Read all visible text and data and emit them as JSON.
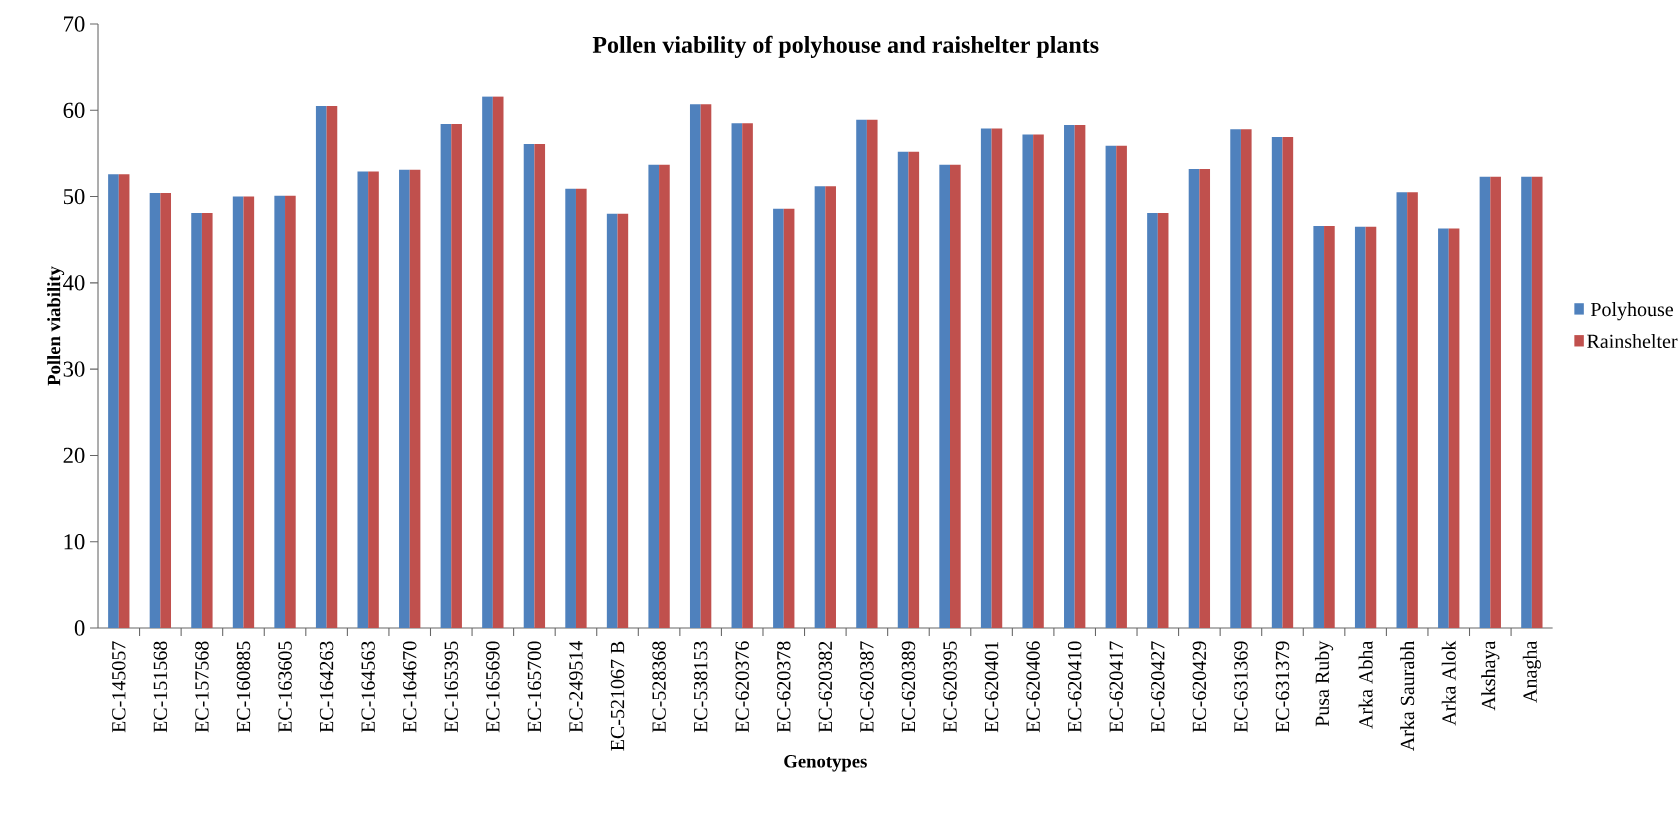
{
  "chart_data": {
    "type": "bar",
    "title": "Pollen viability of polyhouse and raishelter plants",
    "xlabel": "Genotypes",
    "ylabel": "Pollen viability",
    "categories": [
      "EC-145057",
      "EC-151568",
      "EC-157568",
      "EC-160885",
      "EC-163605",
      "EC-164263",
      "EC-164563",
      "EC-164670",
      "EC-165395",
      "EC-165690",
      "EC-165700",
      "EC-249514",
      "EC-521067 B",
      "EC-528368",
      "EC-538153",
      "EC-620376",
      "EC-620378",
      "EC-620382",
      "EC-620387",
      "EC-620389",
      "EC-620395",
      "EC-620401",
      "EC-620406",
      "EC-620410",
      "EC-620417",
      "EC-620427",
      "EC-620429",
      "EC-631369",
      "EC-631379",
      "Pusa Ruby",
      "Arka Abha",
      "Arka Saurabh",
      "Arka Alok",
      "Akshaya",
      "Anagha"
    ],
    "series": [
      {
        "name": "Polyhouse",
        "color": "#4f81bd",
        "values": [
          52.6,
          50.4,
          48.1,
          50.0,
          50.1,
          60.5,
          52.9,
          53.1,
          58.4,
          61.6,
          56.1,
          50.9,
          48.0,
          53.7,
          60.7,
          58.5,
          48.6,
          51.2,
          58.9,
          55.2,
          53.7,
          57.9,
          57.2,
          58.3,
          55.9,
          48.1,
          53.2,
          57.8,
          56.9,
          46.6,
          46.5,
          50.5,
          46.3,
          52.3,
          52.3
        ]
      },
      {
        "name": "Rainshelter",
        "color": "#c0504d",
        "values": [
          52.6,
          50.4,
          48.1,
          50.0,
          50.1,
          60.5,
          52.9,
          53.1,
          58.4,
          61.6,
          56.1,
          50.9,
          48.0,
          53.7,
          60.7,
          58.5,
          48.6,
          51.2,
          58.9,
          55.2,
          53.7,
          57.9,
          57.2,
          58.3,
          55.9,
          48.1,
          53.2,
          57.8,
          56.9,
          46.6,
          46.5,
          50.5,
          46.3,
          52.3,
          52.3
        ]
      }
    ],
    "ylim": [
      0,
      70
    ],
    "yticks": [
      0,
      10,
      20,
      30,
      40,
      50,
      60,
      70
    ],
    "grid": false,
    "legend": "right"
  }
}
